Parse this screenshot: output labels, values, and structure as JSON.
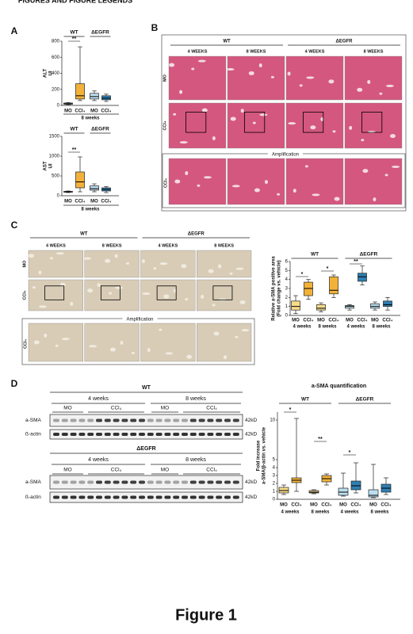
{
  "header": "FIGURES AND FIGURE LEGENDS",
  "figure_title": "Figure 1",
  "panel_labels": [
    "A",
    "B",
    "C",
    "D"
  ],
  "panel_b": {
    "genotypes": [
      "WT",
      "ΔEGFR"
    ],
    "times": [
      "4 WEEKS",
      "8 WEEKS",
      "4 WEEKS",
      "8 WEEKS"
    ],
    "rows": [
      "MO",
      "CCl₄"
    ],
    "amplification": "Amplification",
    "amplification_row": "CCl₄"
  },
  "panel_c": {
    "genotypes": [
      "WT",
      "ΔEGFR"
    ],
    "times": [
      "4 WEEKS",
      "8 WEEKS",
      "4 WEEKS",
      "8 WEEKS"
    ],
    "rows": [
      "MO",
      "CCl₄"
    ],
    "amplification": "Amplification",
    "amplification_row": "CCl₄"
  },
  "panel_d": {
    "blots": [
      {
        "genotype": "WT",
        "times": [
          "4 weeks",
          "8 weeks"
        ],
        "treatments": [
          "MO",
          "CCl₄",
          "MO",
          "CCl₄"
        ],
        "proteins": [
          "a-SMA",
          "ß-actin"
        ],
        "sizes": [
          "42kD",
          "42kD"
        ]
      },
      {
        "genotype": "ΔEGFR",
        "times": [
          "4 weeks",
          "8 weeks"
        ],
        "treatments": [
          "MO",
          "CCl₄",
          "MO",
          "CCl₄"
        ],
        "proteins": [
          "a-SMA",
          "ß-actin"
        ],
        "sizes": [
          "42kD",
          "42kD"
        ]
      }
    ]
  },
  "chart_data": [
    {
      "type": "box",
      "ylabel": [
        "ALT",
        "UI"
      ],
      "ylim": [
        0,
        800
      ],
      "yticks": [
        0,
        200,
        400,
        600,
        800
      ],
      "groups": [
        "WT",
        "ΔEGFR"
      ],
      "xlabel": "8 weeks",
      "annotations": [
        "**"
      ],
      "boxes": [
        {
          "name": "MO",
          "color": "#d6eaf5",
          "min": 10,
          "q1": 15,
          "median": 20,
          "q3": 30,
          "max": 35
        },
        {
          "name": "CCl₄",
          "color": "#f2b23a",
          "min": 60,
          "q1": 80,
          "median": 120,
          "q3": 270,
          "max": 730
        },
        {
          "name": "MO",
          "color": "#bcdff0",
          "min": 60,
          "q1": 80,
          "median": 110,
          "q3": 150,
          "max": 180
        },
        {
          "name": "CCl₄",
          "color": "#2f7fb3",
          "min": 50,
          "q1": 70,
          "median": 90,
          "q3": 120,
          "max": 140
        }
      ]
    },
    {
      "type": "box",
      "ylabel": [
        "AST",
        "UI"
      ],
      "ylim": [
        0,
        1500
      ],
      "yticks": [
        0,
        500,
        1000,
        1500
      ],
      "groups": [
        "WT",
        "ΔEGFR"
      ],
      "xlabel": "8 weeks",
      "annotations": [
        "**"
      ],
      "boxes": [
        {
          "name": "MO",
          "color": "#d6eaf5",
          "min": 80,
          "q1": 90,
          "median": 100,
          "q3": 110,
          "max": 120
        },
        {
          "name": "CCl₄",
          "color": "#f2b23a",
          "min": 100,
          "q1": 200,
          "median": 350,
          "q3": 600,
          "max": 980
        },
        {
          "name": "MO",
          "color": "#bcdff0",
          "min": 100,
          "q1": 140,
          "median": 180,
          "q3": 250,
          "max": 300
        },
        {
          "name": "CCl₄",
          "color": "#2f7fb3",
          "min": 80,
          "q1": 120,
          "median": 160,
          "q3": 200,
          "max": 230
        }
      ]
    },
    {
      "type": "box",
      "ylabel": [
        "Relative a-SMA positive area",
        "(Fold change vs. vehicle)"
      ],
      "ylim": [
        0,
        6
      ],
      "yticks": [
        0,
        1,
        2,
        3,
        4,
        5,
        6
      ],
      "groups": [
        "WT",
        "ΔEGFR"
      ],
      "subgroups": [
        "4 weeks",
        "8 weeks",
        "4 weeks",
        "8 weeks"
      ],
      "annotations": [
        "*",
        "*",
        "**"
      ],
      "boxes": [
        {
          "name": "MO",
          "color": "#f7dc8a",
          "min": 0.2,
          "q1": 0.6,
          "median": 1,
          "q3": 1.6,
          "max": 2.2
        },
        {
          "name": "CCl₄",
          "color": "#f2b23a",
          "min": 1.8,
          "q1": 2.2,
          "median": 3,
          "q3": 3.7,
          "max": 4
        },
        {
          "name": "MO",
          "color": "#f7dc8a",
          "min": 0.4,
          "q1": 0.6,
          "median": 0.8,
          "q3": 1.2,
          "max": 1.4
        },
        {
          "name": "CCl₄",
          "color": "#f2b23a",
          "min": 2,
          "q1": 2.4,
          "median": 2.8,
          "q3": 4.3,
          "max": 4.5
        },
        {
          "name": "MO",
          "color": "#bcdff0",
          "min": 0.6,
          "q1": 0.8,
          "median": 1,
          "q3": 1.1,
          "max": 1.2
        },
        {
          "name": "CCl₄",
          "color": "#2f7fb3",
          "min": 3.4,
          "q1": 3.8,
          "median": 4.3,
          "q3": 4.7,
          "max": 5.5
        },
        {
          "name": "MO",
          "color": "#bcdff0",
          "min": 0.6,
          "q1": 0.8,
          "median": 1,
          "q3": 1.3,
          "max": 1.5
        },
        {
          "name": "CCl₄",
          "color": "#2f7fb3",
          "min": 0.6,
          "q1": 1,
          "median": 1.2,
          "q3": 1.6,
          "max": 2
        }
      ]
    },
    {
      "type": "box",
      "title": "a-SMA quantification",
      "ylabel": [
        "Fold increase",
        "a-SMA/β-actin vs. vehicle"
      ],
      "ylim": [
        0,
        11
      ],
      "yticks": [
        0,
        1,
        2,
        3,
        4,
        5,
        10
      ],
      "groups": [
        "WT",
        "ΔEGFR"
      ],
      "subgroups": [
        "4 weeks",
        "8 weeks",
        "4 weeks",
        "8 weeks"
      ],
      "annotations": [
        "*",
        "**",
        "*"
      ],
      "boxes": [
        {
          "name": "MO",
          "color": "#f7dc8a",
          "min": 0.6,
          "q1": 0.8,
          "median": 1.1,
          "q3": 1.5,
          "max": 1.8
        },
        {
          "name": "CCl₄",
          "color": "#f2b23a",
          "min": 1,
          "q1": 2.1,
          "median": 2.4,
          "q3": 2.7,
          "max": 10.2
        },
        {
          "name": "MO",
          "color": "#f7dc8a",
          "min": 0.7,
          "q1": 0.8,
          "median": 0.9,
          "q3": 1.1,
          "max": 1.2
        },
        {
          "name": "CCl₄",
          "color": "#f2b23a",
          "min": 1.8,
          "q1": 2.2,
          "median": 2.6,
          "q3": 3,
          "max": 3.2
        },
        {
          "name": "MO",
          "color": "#bcdff0",
          "min": 0.4,
          "q1": 0.5,
          "median": 0.9,
          "q3": 1.4,
          "max": 3.3
        },
        {
          "name": "CCl₄",
          "color": "#2f7fb3",
          "min": 0.8,
          "q1": 1.2,
          "median": 1.7,
          "q3": 2.3,
          "max": 4.6
        },
        {
          "name": "MO",
          "color": "#bcdff0",
          "min": 0.2,
          "q1": 0.3,
          "median": 0.5,
          "q3": 1.2,
          "max": 4.4
        },
        {
          "name": "CCl₄",
          "color": "#2f7fb3",
          "min": 0.6,
          "q1": 0.9,
          "median": 1.4,
          "q3": 1.9,
          "max": 2.7
        }
      ]
    }
  ]
}
